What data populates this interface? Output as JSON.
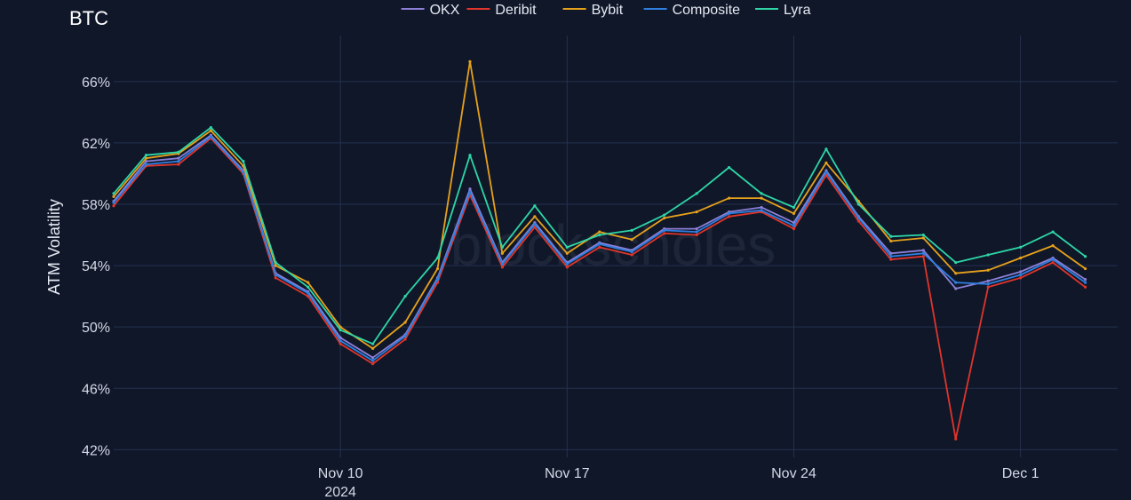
{
  "chart_data": {
    "type": "line",
    "title": "BTC",
    "ylabel": "ATM Volatility",
    "xlabel": "",
    "watermark": "blockscholes",
    "x_ticks": [
      {
        "date": "2024-11-10",
        "label": "Nov 10",
        "sublabel": "2024"
      },
      {
        "date": "2024-11-17",
        "label": "Nov 17",
        "sublabel": ""
      },
      {
        "date": "2024-11-24",
        "label": "Nov 24",
        "sublabel": ""
      },
      {
        "date": "2024-12-01",
        "label": "Dec 1",
        "sublabel": ""
      }
    ],
    "y_ticks": [
      42,
      46,
      50,
      54,
      58,
      62,
      66
    ],
    "y_tick_labels": [
      "42%",
      "46%",
      "50%",
      "54%",
      "58%",
      "62%",
      "66%"
    ],
    "xlim": [
      "2024-11-03",
      "2024-12-04"
    ],
    "ylim": [
      41.5,
      69
    ],
    "grid": true,
    "legend_position": "top-center",
    "x": [
      "2024-11-03",
      "2024-11-04",
      "2024-11-05",
      "2024-11-06",
      "2024-11-07",
      "2024-11-08",
      "2024-11-09",
      "2024-11-10",
      "2024-11-11",
      "2024-11-12",
      "2024-11-13",
      "2024-11-14",
      "2024-11-15",
      "2024-11-16",
      "2024-11-17",
      "2024-11-18",
      "2024-11-19",
      "2024-11-20",
      "2024-11-21",
      "2024-11-22",
      "2024-11-23",
      "2024-11-24",
      "2024-11-25",
      "2024-11-26",
      "2024-11-27",
      "2024-11-28",
      "2024-11-29",
      "2024-11-30",
      "2024-12-01",
      "2024-12-02",
      "2024-12-03"
    ],
    "series": [
      {
        "name": "OKX",
        "color": "#8b7fd6",
        "values": [
          58.2,
          60.8,
          61.0,
          62.5,
          60.2,
          53.5,
          52.3,
          49.3,
          48.0,
          49.5,
          53.2,
          59.0,
          54.2,
          56.8,
          54.2,
          55.5,
          55.0,
          56.4,
          56.4,
          57.5,
          57.8,
          56.8,
          60.2,
          57.2,
          54.8,
          55.0,
          52.5,
          53.0,
          53.6,
          54.5,
          53.1
        ]
      },
      {
        "name": "Deribit",
        "color": "#e0352b",
        "values": [
          57.9,
          60.5,
          60.6,
          62.3,
          60.0,
          53.2,
          52.0,
          48.9,
          47.6,
          49.2,
          52.9,
          58.6,
          53.9,
          56.5,
          53.9,
          55.2,
          54.7,
          56.1,
          56.0,
          57.2,
          57.5,
          56.4,
          59.9,
          56.9,
          54.4,
          54.6,
          42.7,
          52.6,
          53.2,
          54.2,
          52.6
        ]
      },
      {
        "name": "Bybit",
        "color": "#e6a11c",
        "values": [
          58.5,
          61.0,
          61.3,
          62.8,
          60.5,
          54.0,
          52.9,
          50.0,
          48.6,
          50.3,
          53.8,
          67.3,
          54.8,
          57.2,
          54.8,
          56.2,
          55.7,
          57.1,
          57.5,
          58.4,
          58.4,
          57.4,
          60.7,
          58.2,
          55.6,
          55.8,
          53.5,
          53.7,
          54.5,
          55.3,
          53.8
        ]
      },
      {
        "name": "Composite",
        "color": "#2f7fe0",
        "values": [
          58.1,
          60.6,
          60.8,
          62.4,
          60.1,
          53.4,
          52.2,
          49.1,
          47.8,
          49.4,
          53.1,
          58.8,
          54.1,
          56.7,
          54.1,
          55.4,
          54.9,
          56.3,
          56.2,
          57.4,
          57.6,
          56.6,
          60.1,
          57.1,
          54.6,
          54.8,
          52.9,
          52.8,
          53.4,
          54.4,
          52.9
        ]
      },
      {
        "name": "Lyra",
        "color": "#2ed6a7",
        "values": [
          58.7,
          61.2,
          61.4,
          63.0,
          60.8,
          54.2,
          52.6,
          49.8,
          48.9,
          52.0,
          54.5,
          61.2,
          55.2,
          57.9,
          55.2,
          56.0,
          56.3,
          57.3,
          58.7,
          60.4,
          58.7,
          57.8,
          61.6,
          58.0,
          55.9,
          56.0,
          54.2,
          54.7,
          55.2,
          56.2,
          54.6
        ]
      }
    ]
  }
}
